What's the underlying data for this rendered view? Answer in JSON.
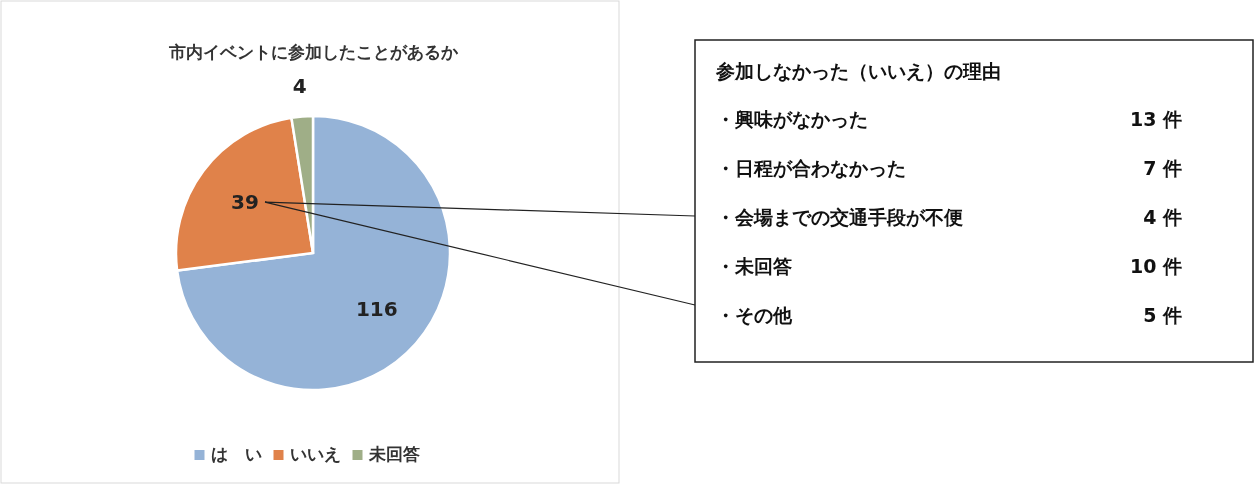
{
  "chart_data": [
    {
      "type": "pie",
      "title": "市内イベントに参加したことがあるか",
      "categories": [
        "は　い",
        "いいえ",
        "未回答"
      ],
      "values": [
        116,
        39,
        4
      ],
      "colors": [
        "#95b3d7",
        "#e0824a",
        "#9fae87"
      ],
      "data_labels": true,
      "legend": "bottom"
    },
    {
      "type": "other",
      "title": "参加しなかった（いいえ）の理由",
      "annotations": [
        "・興味がなかった",
        "13 件",
        "・日程が合わなかった",
        "7 件",
        "・会場までの交通手段が不便",
        "4 件",
        "・未回答",
        "10 件",
        "・その他",
        "5 件"
      ]
    }
  ]
}
